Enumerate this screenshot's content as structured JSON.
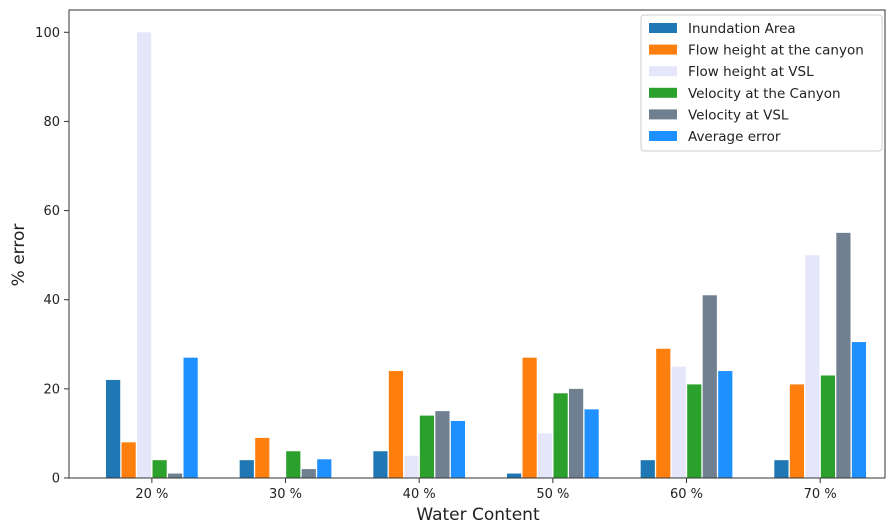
{
  "chart_data": {
    "type": "bar",
    "xlabel": "Water Content",
    "ylabel": "% error",
    "categories": [
      "20 %",
      "30 %",
      "40 %",
      "50 %",
      "60 %",
      "70 %"
    ],
    "ylim": [
      0,
      105
    ],
    "yticks": [
      0,
      20,
      40,
      60,
      80,
      100
    ],
    "grid": false,
    "legend_position": "top-right",
    "series": [
      {
        "name": "Inundation Area",
        "color": "#1f77b4",
        "values": [
          22,
          4,
          6,
          1,
          4,
          4
        ]
      },
      {
        "name": "Flow height at the canyon",
        "color": "#ff7f0e",
        "values": [
          8,
          9,
          24,
          27,
          29,
          21
        ]
      },
      {
        "name": "Flow height at VSL",
        "color": "#e6e6fa",
        "values": [
          100,
          0,
          5,
          10,
          25,
          50
        ]
      },
      {
        "name": "Velocity at the Canyon",
        "color": "#2ca02c",
        "values": [
          4,
          6,
          14,
          19,
          21,
          23
        ]
      },
      {
        "name": "Velocity at VSL",
        "color": "#708090",
        "values": [
          1,
          2,
          15,
          20,
          41,
          55
        ]
      },
      {
        "name": "Average error",
        "color": "#1e90ff",
        "values": [
          27,
          4.2,
          12.8,
          15.4,
          24,
          30.5
        ]
      }
    ]
  }
}
